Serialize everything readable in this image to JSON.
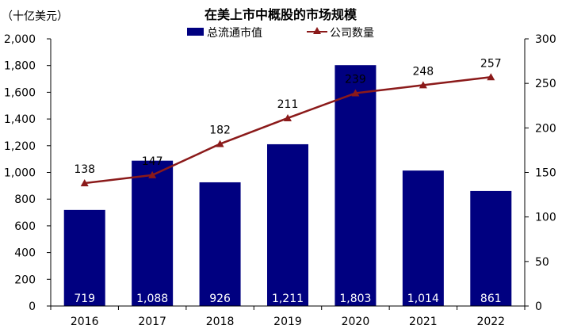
{
  "chart_data": {
    "type": "bar",
    "title": "在美上市中概股的市场规模",
    "y_unit": "（十亿美元）",
    "categories": [
      "2016",
      "2017",
      "2018",
      "2019",
      "2020",
      "2021",
      "2022"
    ],
    "y_ticks": [
      "0",
      "200",
      "400",
      "600",
      "800",
      "1,000",
      "1,200",
      "1,400",
      "1,600",
      "1,800",
      "2,000"
    ],
    "y2_ticks": [
      "0",
      "50",
      "100",
      "150",
      "200",
      "250",
      "300"
    ],
    "ylim": [
      0,
      2000
    ],
    "y2lim": [
      0,
      300
    ],
    "legend_position": "top-center",
    "grid": false,
    "series": [
      {
        "name": "总流通市值",
        "kind": "bar",
        "axis": "left",
        "color": "#000080",
        "values": [
          719,
          1088,
          926,
          1211,
          1803,
          1014,
          861
        ],
        "labels": [
          "719",
          "1,088",
          "926",
          "1,211",
          "1,803",
          "1,014",
          "861"
        ]
      },
      {
        "name": "公司数量",
        "kind": "line",
        "axis": "right",
        "color": "#8B1A1A",
        "marker": "triangle",
        "values": [
          138,
          147,
          182,
          211,
          239,
          248,
          257
        ],
        "labels": [
          "138",
          "147",
          "182",
          "211",
          "239",
          "248",
          "257"
        ]
      }
    ]
  }
}
